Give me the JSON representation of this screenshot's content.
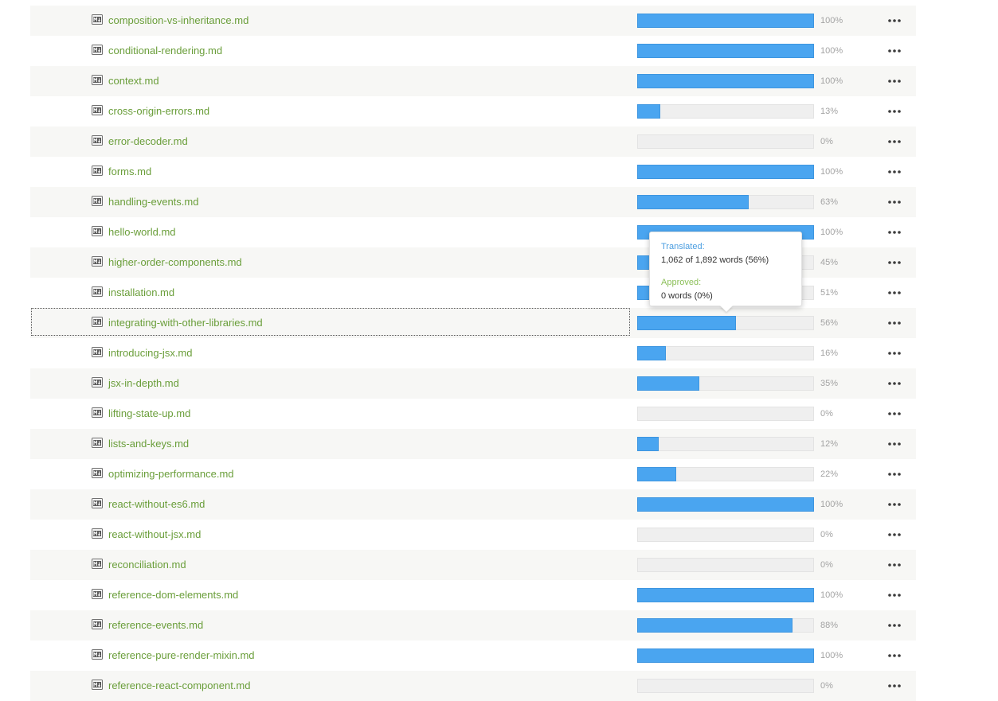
{
  "colors": {
    "file_link": "#6a9e3a",
    "progress_fill": "#4aa5f0",
    "progress_track": "#efefef",
    "percent_text": "#a3a3a3",
    "tooltip_translated_label": "#4a9de0",
    "tooltip_approved_label": "#8dc05a"
  },
  "files": [
    {
      "name": "composition-vs-inheritance.md",
      "progress": 100,
      "percent_label": "100%"
    },
    {
      "name": "conditional-rendering.md",
      "progress": 100,
      "percent_label": "100%"
    },
    {
      "name": "context.md",
      "progress": 100,
      "percent_label": "100%"
    },
    {
      "name": "cross-origin-errors.md",
      "progress": 13,
      "percent_label": "13%"
    },
    {
      "name": "error-decoder.md",
      "progress": 0,
      "percent_label": "0%"
    },
    {
      "name": "forms.md",
      "progress": 100,
      "percent_label": "100%"
    },
    {
      "name": "handling-events.md",
      "progress": 63,
      "percent_label": "63%"
    },
    {
      "name": "hello-world.md",
      "progress": 100,
      "percent_label": "100%"
    },
    {
      "name": "higher-order-components.md",
      "progress": 45,
      "percent_label": "45%"
    },
    {
      "name": "installation.md",
      "progress": 51,
      "percent_label": "51%"
    },
    {
      "name": "integrating-with-other-libraries.md",
      "progress": 56,
      "percent_label": "56%",
      "focused": true
    },
    {
      "name": "introducing-jsx.md",
      "progress": 16,
      "percent_label": "16%"
    },
    {
      "name": "jsx-in-depth.md",
      "progress": 35,
      "percent_label": "35%"
    },
    {
      "name": "lifting-state-up.md",
      "progress": 0,
      "percent_label": "0%"
    },
    {
      "name": "lists-and-keys.md",
      "progress": 12,
      "percent_label": "12%"
    },
    {
      "name": "optimizing-performance.md",
      "progress": 22,
      "percent_label": "22%"
    },
    {
      "name": "react-without-es6.md",
      "progress": 100,
      "percent_label": "100%"
    },
    {
      "name": "react-without-jsx.md",
      "progress": 0,
      "percent_label": "0%"
    },
    {
      "name": "reconciliation.md",
      "progress": 0,
      "percent_label": "0%"
    },
    {
      "name": "reference-dom-elements.md",
      "progress": 100,
      "percent_label": "100%"
    },
    {
      "name": "reference-events.md",
      "progress": 88,
      "percent_label": "88%"
    },
    {
      "name": "reference-pure-render-mixin.md",
      "progress": 100,
      "percent_label": "100%"
    },
    {
      "name": "reference-react-component.md",
      "progress": 0,
      "percent_label": "0%"
    }
  ],
  "row_icon": "markdown-file-icon",
  "row_action_icon": "more-options-icon",
  "tooltip": {
    "translated_label": "Translated:",
    "translated_value": "1,062 of 1,892 words (56%)",
    "approved_label": "Approved:",
    "approved_value": "0 words (0%)"
  }
}
